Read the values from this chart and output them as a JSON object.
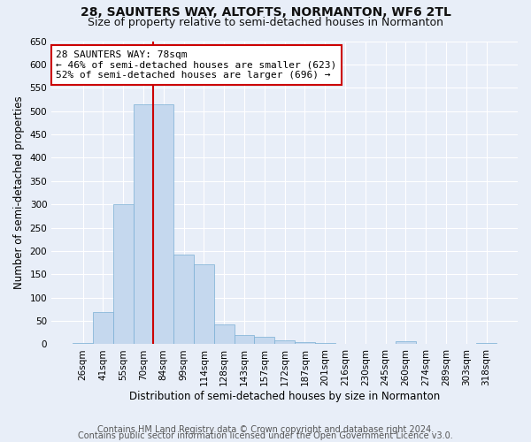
{
  "title": "28, SAUNTERS WAY, ALTOFTS, NORMANTON, WF6 2TL",
  "subtitle": "Size of property relative to semi-detached houses in Normanton",
  "xlabel": "Distribution of semi-detached houses by size in Normanton",
  "ylabel": "Number of semi-detached properties",
  "categories": [
    "26sqm",
    "41sqm",
    "55sqm",
    "70sqm",
    "84sqm",
    "99sqm",
    "114sqm",
    "128sqm",
    "143sqm",
    "157sqm",
    "172sqm",
    "187sqm",
    "201sqm",
    "216sqm",
    "230sqm",
    "245sqm",
    "260sqm",
    "274sqm",
    "289sqm",
    "303sqm",
    "318sqm"
  ],
  "values": [
    3,
    70,
    300,
    515,
    515,
    192,
    172,
    42,
    20,
    16,
    9,
    5,
    3,
    1,
    1,
    1,
    7,
    1,
    1,
    1,
    3
  ],
  "red_line_index": 4,
  "bar_color": "#c5d8ee",
  "bar_edge_color": "#7aafd4",
  "red_line_color": "#cc0000",
  "annotation_text": "28 SAUNTERS WAY: 78sqm\n← 46% of semi-detached houses are smaller (623)\n52% of semi-detached houses are larger (696) →",
  "annotation_box_color": "#ffffff",
  "annotation_box_edge": "#cc0000",
  "ylim": [
    0,
    650
  ],
  "yticks": [
    0,
    50,
    100,
    150,
    200,
    250,
    300,
    350,
    400,
    450,
    500,
    550,
    600,
    650
  ],
  "footer_line1": "Contains HM Land Registry data © Crown copyright and database right 2024.",
  "footer_line2": "Contains public sector information licensed under the Open Government Licence v3.0.",
  "bg_color": "#e8eef8",
  "plot_bg_color": "#e8eef8",
  "grid_color": "#ffffff",
  "title_fontsize": 10,
  "subtitle_fontsize": 9,
  "xlabel_fontsize": 8.5,
  "ylabel_fontsize": 8.5,
  "tick_fontsize": 7.5,
  "annotation_fontsize": 8,
  "footer_fontsize": 7
}
